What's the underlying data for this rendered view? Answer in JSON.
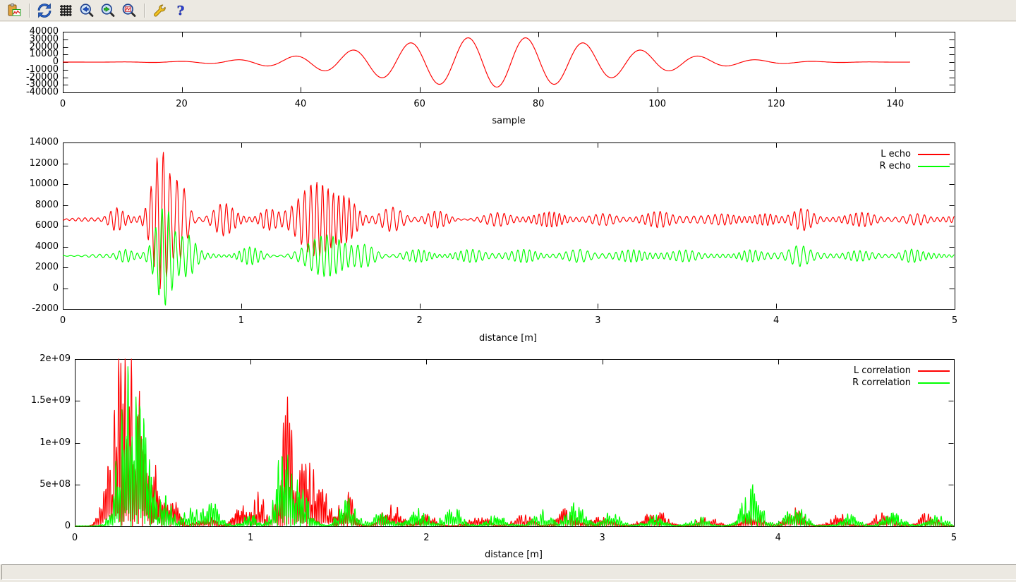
{
  "window": {
    "background": "#ece9e2",
    "canvas_background": "#ffffff"
  },
  "toolbar": {
    "buttons": [
      {
        "icon": "copy-plot-icon"
      },
      {
        "icon": "replot-icon"
      },
      {
        "icon": "grid-icon"
      },
      {
        "icon": "zoom-previous-icon"
      },
      {
        "icon": "zoom-next-icon"
      },
      {
        "icon": "autoscale-icon"
      },
      {
        "icon": "configure-icon"
      },
      {
        "icon": "help-icon"
      }
    ]
  },
  "status_bar": {
    "text": ""
  },
  "colors": {
    "line_red": "#ff0000",
    "line_green": "#00ff00",
    "axis": "#000000"
  },
  "chart_data": [
    {
      "type": "line",
      "title": "",
      "xlabel": "sample",
      "ylabel": "",
      "grid": false,
      "x_range": [
        0,
        150
      ],
      "y_range": [
        -40000,
        40000
      ],
      "x_tick_values": [
        0,
        20,
        40,
        60,
        80,
        100,
        120,
        140
      ],
      "x_tick_labels": [
        "0",
        "20",
        "40",
        "60",
        "80",
        "100",
        "120",
        "140"
      ],
      "y_tick_values": [
        40000,
        30000,
        20000,
        10000,
        0,
        -10000,
        -20000,
        -30000,
        -40000
      ],
      "y_tick_labels": [
        "40000",
        "30000",
        "20000",
        "10000",
        "0",
        "-10000",
        "-20000",
        "-30000",
        "-40000"
      ],
      "series": [
        {
          "name": "",
          "color": "#ff0000",
          "model": {
            "kind": "wavelet",
            "t_start": 0,
            "t_end": 142.5,
            "step": 0.25,
            "center": 73,
            "sigma": 20,
            "amplitude": 33000,
            "period": 9.7,
            "description": "chirp wavelet: near zero until ~25, oscillation grows to peaks ~31000 at samples 68 and 78 with trough ~-33000 at 73, decays to zero by ~130"
          }
        }
      ]
    },
    {
      "type": "line",
      "title": "",
      "xlabel": "distance [m]",
      "ylabel": "",
      "grid": false,
      "legend_position": "top-right",
      "x_range": [
        0,
        5
      ],
      "y_range": [
        -2000,
        14000
      ],
      "x_tick_values": [
        0,
        1,
        2,
        3,
        4,
        5
      ],
      "x_tick_labels": [
        "0",
        "1",
        "2",
        "3",
        "4",
        "5"
      ],
      "y_tick_values": [
        14000,
        12000,
        10000,
        8000,
        6000,
        4000,
        2000,
        0,
        -2000
      ],
      "y_tick_labels": [
        "14000",
        "12000",
        "10000",
        "8000",
        "6000",
        "4000",
        "2000",
        "0",
        "-2000"
      ],
      "series": [
        {
          "name": "L echo",
          "color": "#ff0000",
          "model": {
            "kind": "echo",
            "baseline": 6600,
            "base_amp": 190,
            "carrier_period": 0.035,
            "seed": 7,
            "ramp_in": 0.3,
            "bursts": [
              [
                0.3,
                0.035,
                900
              ],
              [
                0.55,
                0.045,
                6600
              ],
              [
                0.66,
                0.035,
                3200
              ],
              [
                0.9,
                0.05,
                1300
              ],
              [
                1.15,
                0.04,
                800
              ],
              [
                1.42,
                0.09,
                3500
              ],
              [
                1.6,
                0.05,
                1500
              ],
              [
                1.85,
                0.05,
                900
              ],
              [
                2.1,
                0.05,
                600
              ],
              [
                2.45,
                0.06,
                450
              ],
              [
                2.75,
                0.06,
                500
              ],
              [
                3.05,
                0.06,
                450
              ],
              [
                3.35,
                0.06,
                600
              ],
              [
                3.7,
                0.06,
                450
              ],
              [
                3.95,
                0.05,
                500
              ],
              [
                4.15,
                0.05,
                800
              ],
              [
                4.5,
                0.06,
                500
              ],
              [
                4.8,
                0.05,
                450
              ]
            ],
            "description": "oscillates around 6600; main burst at 0.55 m peaks ~13400 / trough ~-500; secondary bursts near 1.42 m (peak ~10300) and 4.15 m"
          }
        },
        {
          "name": "R echo",
          "color": "#00ff00",
          "model": {
            "kind": "echo",
            "baseline": 3100,
            "base_amp": 150,
            "carrier_period": 0.035,
            "seed": 13,
            "ramp_in": 0.3,
            "bursts": [
              [
                0.35,
                0.04,
                600
              ],
              [
                0.57,
                0.045,
                4700
              ],
              [
                0.7,
                0.04,
                1800
              ],
              [
                1.05,
                0.05,
                700
              ],
              [
                1.48,
                0.09,
                1900
              ],
              [
                1.7,
                0.05,
                800
              ],
              [
                2.0,
                0.06,
                500
              ],
              [
                2.3,
                0.06,
                450
              ],
              [
                2.6,
                0.06,
                500
              ],
              [
                2.9,
                0.06,
                550
              ],
              [
                3.2,
                0.06,
                450
              ],
              [
                3.5,
                0.06,
                500
              ],
              [
                3.85,
                0.05,
                500
              ],
              [
                4.13,
                0.05,
                900
              ],
              [
                4.45,
                0.06,
                450
              ],
              [
                4.75,
                0.05,
                500
              ]
            ],
            "description": "oscillates around 3100; main burst at 0.57 m peaks ~7700 / trough ~-1900; smaller bursts near 1.48 m and 4.13 m"
          }
        }
      ]
    },
    {
      "type": "line",
      "title": "",
      "xlabel": "distance [m]",
      "ylabel": "",
      "grid": false,
      "legend_position": "top-right",
      "x_range": [
        0,
        5
      ],
      "y_range": [
        0,
        2000000000
      ],
      "x_tick_values": [
        0,
        1,
        2,
        3,
        4,
        5
      ],
      "x_tick_labels": [
        "0",
        "1",
        "2",
        "3",
        "4",
        "5"
      ],
      "y_tick_values": [
        2000000000,
        1500000000,
        1000000000,
        500000000,
        0
      ],
      "y_tick_labels": [
        "2e+09",
        "1.5e+09",
        "1e+09",
        "5e+08",
        "0"
      ],
      "series": [
        {
          "name": "L correlation",
          "color": "#ff0000",
          "model": {
            "kind": "correlation",
            "spike_period": 0.021,
            "seed": 3,
            "floor": 8000000,
            "bursts": [
              [
                0.17,
                0.03,
                300000000
              ],
              [
                0.27,
                0.05,
                2200000000
              ],
              [
                0.35,
                0.04,
                1600000000
              ],
              [
                0.45,
                0.03,
                800000000
              ],
              [
                0.55,
                0.04,
                350000000
              ],
              [
                0.75,
                0.05,
                120000000
              ],
              [
                0.95,
                0.04,
                250000000
              ],
              [
                1.05,
                0.03,
                450000000
              ],
              [
                1.2,
                0.035,
                1750000000
              ],
              [
                1.3,
                0.04,
                900000000
              ],
              [
                1.4,
                0.04,
                650000000
              ],
              [
                1.55,
                0.04,
                450000000
              ],
              [
                1.8,
                0.05,
                300000000
              ],
              [
                2.0,
                0.05,
                150000000
              ],
              [
                2.3,
                0.06,
                120000000
              ],
              [
                2.55,
                0.05,
                150000000
              ],
              [
                2.8,
                0.05,
                220000000
              ],
              [
                3.0,
                0.05,
                180000000
              ],
              [
                3.3,
                0.06,
                220000000
              ],
              [
                3.6,
                0.05,
                150000000
              ],
              [
                3.85,
                0.05,
                250000000
              ],
              [
                4.1,
                0.05,
                220000000
              ],
              [
                4.35,
                0.05,
                150000000
              ],
              [
                4.6,
                0.05,
                200000000
              ],
              [
                4.85,
                0.05,
                180000000
              ]
            ],
            "description": "spiky rectified correlation; dominant burst ~0.27-0.35 m clipped at 2e9; second burst at 1.2 m reaching ~1.73e9"
          }
        },
        {
          "name": "R correlation",
          "color": "#00ff00",
          "model": {
            "kind": "correlation",
            "spike_period": 0.021,
            "seed": 5,
            "floor": 8000000,
            "bursts": [
              [
                0.3,
                0.05,
                1900000000
              ],
              [
                0.4,
                0.04,
                1200000000
              ],
              [
                0.52,
                0.03,
                400000000
              ],
              [
                0.65,
                0.04,
                250000000
              ],
              [
                0.78,
                0.05,
                300000000
              ],
              [
                1.0,
                0.04,
                150000000
              ],
              [
                1.19,
                0.04,
                1250000000
              ],
              [
                1.3,
                0.04,
                500000000
              ],
              [
                1.55,
                0.05,
                350000000
              ],
              [
                1.75,
                0.05,
                200000000
              ],
              [
                1.95,
                0.05,
                250000000
              ],
              [
                2.15,
                0.05,
                250000000
              ],
              [
                2.4,
                0.05,
                150000000
              ],
              [
                2.65,
                0.05,
                200000000
              ],
              [
                2.85,
                0.05,
                300000000
              ],
              [
                3.05,
                0.05,
                200000000
              ],
              [
                3.3,
                0.05,
                150000000
              ],
              [
                3.55,
                0.05,
                120000000
              ],
              [
                3.85,
                0.05,
                520000000
              ],
              [
                4.1,
                0.05,
                300000000
              ],
              [
                4.4,
                0.05,
                150000000
              ],
              [
                4.65,
                0.05,
                200000000
              ],
              [
                4.9,
                0.05,
                150000000
              ]
            ],
            "description": "spiky rectified correlation; dominant burst ~0.3 m reaching ~1.9e9; bursts at 1.19 m (~1.25e9) and 3.85 m (~5.2e8)"
          }
        }
      ]
    }
  ]
}
